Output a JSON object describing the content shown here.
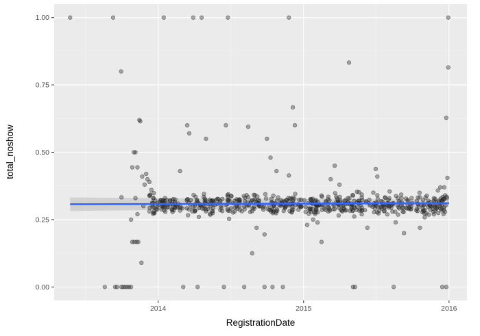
{
  "chart_data": {
    "type": "scatter",
    "xlabel": "RegistrationDate",
    "ylabel": "total_noshow",
    "x_ticks": [
      "2014",
      "2015",
      "2016"
    ],
    "y_ticks": [
      "0.00",
      "0.25",
      "0.50",
      "0.75",
      "1.00"
    ],
    "xlim": [
      "2013-04-15",
      "2016-02-15"
    ],
    "ylim": [
      -0.05,
      1.05
    ],
    "grid": true,
    "legend": "none",
    "point_color": "#333333",
    "trend_color": "#3366ff",
    "band_color": "#bfbfbf",
    "trend": {
      "method": "linear",
      "start": {
        "x": "2013-05-25",
        "y": 0.307
      },
      "end": {
        "x": "2016-01-01",
        "y": 0.311
      },
      "band_start": [
        0.282,
        0.332
      ],
      "band_end": [
        0.298,
        0.324
      ]
    },
    "points": [
      {
        "x": "2013-05-25",
        "y": 1.0
      },
      {
        "x": "2013-09-10",
        "y": 1.0
      },
      {
        "x": "2013-09-30",
        "y": 0.8
      },
      {
        "x": "2014-01-15",
        "y": 1.0
      },
      {
        "x": "2014-03-30",
        "y": 1.0
      },
      {
        "x": "2014-04-20",
        "y": 1.0
      },
      {
        "x": "2014-06-25",
        "y": 1.0
      },
      {
        "x": "2014-11-25",
        "y": 1.0
      },
      {
        "x": "2015-04-25",
        "y": 0.833
      },
      {
        "x": "2015-12-30",
        "y": 1.0
      },
      {
        "x": "2015-12-30",
        "y": 0.815
      },
      {
        "x": "2015-12-25",
        "y": 0.628
      },
      {
        "x": "2013-08-20",
        "y": 0.0
      },
      {
        "x": "2013-09-15",
        "y": 0.0
      },
      {
        "x": "2013-09-20",
        "y": 0.0
      },
      {
        "x": "2013-10-01",
        "y": 0.0
      },
      {
        "x": "2013-10-05",
        "y": 0.0
      },
      {
        "x": "2013-10-10",
        "y": 0.0
      },
      {
        "x": "2013-10-15",
        "y": 0.0
      },
      {
        "x": "2013-10-20",
        "y": 0.0
      },
      {
        "x": "2013-10-25",
        "y": 0.0
      },
      {
        "x": "2014-03-05",
        "y": 0.0
      },
      {
        "x": "2014-04-10",
        "y": 0.0
      },
      {
        "x": "2014-06-15",
        "y": 0.0
      },
      {
        "x": "2014-08-05",
        "y": 0.0
      },
      {
        "x": "2014-09-25",
        "y": 0.0
      },
      {
        "x": "2014-10-15",
        "y": 0.0
      },
      {
        "x": "2014-11-10",
        "y": 0.0
      },
      {
        "x": "2015-05-05",
        "y": 0.0
      },
      {
        "x": "2015-05-10",
        "y": 0.0
      },
      {
        "x": "2015-08-15",
        "y": 0.0
      },
      {
        "x": "2015-12-15",
        "y": 0.0
      },
      {
        "x": "2015-12-25",
        "y": 0.0
      },
      {
        "x": "2013-10-01",
        "y": 0.333
      },
      {
        "x": "2013-10-25",
        "y": 0.25
      },
      {
        "x": "2013-10-28",
        "y": 0.167
      },
      {
        "x": "2013-11-02",
        "y": 0.167
      },
      {
        "x": "2013-11-08",
        "y": 0.167
      },
      {
        "x": "2013-11-12",
        "y": 0.167
      },
      {
        "x": "2013-10-28",
        "y": 0.444
      },
      {
        "x": "2013-11-01",
        "y": 0.5
      },
      {
        "x": "2013-11-05",
        "y": 0.5
      },
      {
        "x": "2013-11-10",
        "y": 0.444
      },
      {
        "x": "2013-11-15",
        "y": 0.62
      },
      {
        "x": "2013-11-17",
        "y": 0.615
      },
      {
        "x": "2013-11-22",
        "y": 0.41
      },
      {
        "x": "2013-11-28",
        "y": 0.38
      },
      {
        "x": "2013-12-02",
        "y": 0.42
      },
      {
        "x": "2013-12-05",
        "y": 0.4
      },
      {
        "x": "2013-12-10",
        "y": 0.39
      },
      {
        "x": "2013-12-15",
        "y": 0.36
      },
      {
        "x": "2013-11-20",
        "y": 0.09
      },
      {
        "x": "2013-11-25",
        "y": 0.3
      },
      {
        "x": "2013-11-10",
        "y": 0.27
      },
      {
        "x": "2013-11-05",
        "y": 0.33
      },
      {
        "x": "2013-12-20",
        "y": 0.33
      },
      {
        "x": "2013-12-25",
        "y": 0.32
      },
      {
        "x": "2014-03-15",
        "y": 0.6
      },
      {
        "x": "2014-05-01",
        "y": 0.55
      },
      {
        "x": "2014-06-20",
        "y": 0.6
      },
      {
        "x": "2014-02-25",
        "y": 0.43
      },
      {
        "x": "2014-03-20",
        "y": 0.57
      },
      {
        "x": "2014-08-15",
        "y": 0.595
      },
      {
        "x": "2014-10-01",
        "y": 0.55
      },
      {
        "x": "2014-10-10",
        "y": 0.48
      },
      {
        "x": "2014-10-25",
        "y": 0.43
      },
      {
        "x": "2014-11-25",
        "y": 0.414
      },
      {
        "x": "2014-12-05",
        "y": 0.667
      },
      {
        "x": "2014-12-10",
        "y": 0.6
      },
      {
        "x": "2014-09-05",
        "y": 0.22
      },
      {
        "x": "2014-09-25",
        "y": 0.195
      },
      {
        "x": "2014-08-25",
        "y": 0.125
      },
      {
        "x": "2015-01-10",
        "y": 0.23
      },
      {
        "x": "2015-01-25",
        "y": 0.25
      },
      {
        "x": "2015-03-10",
        "y": 0.4
      },
      {
        "x": "2015-03-20",
        "y": 0.45
      },
      {
        "x": "2015-04-01",
        "y": 0.38
      },
      {
        "x": "2015-02-15",
        "y": 0.167
      },
      {
        "x": "2015-07-01",
        "y": 0.438
      },
      {
        "x": "2015-07-05",
        "y": 0.41
      },
      {
        "x": "2015-09-10",
        "y": 0.2
      },
      {
        "x": "2015-10-20",
        "y": 0.22
      },
      {
        "x": "2015-11-15",
        "y": 0.3
      },
      {
        "x": "2015-12-10",
        "y": 0.37
      },
      {
        "x": "2015-12-20",
        "y": 0.37
      },
      {
        "x": "2015-12-28",
        "y": 0.405
      },
      {
        "x": "2015-12-22",
        "y": 0.34
      },
      {
        "x": "2015-12-27",
        "y": 0.33
      },
      {
        "x": "2015-08-20",
        "y": 0.24
      },
      {
        "x": "2015-06-10",
        "y": 0.22
      }
    ]
  }
}
